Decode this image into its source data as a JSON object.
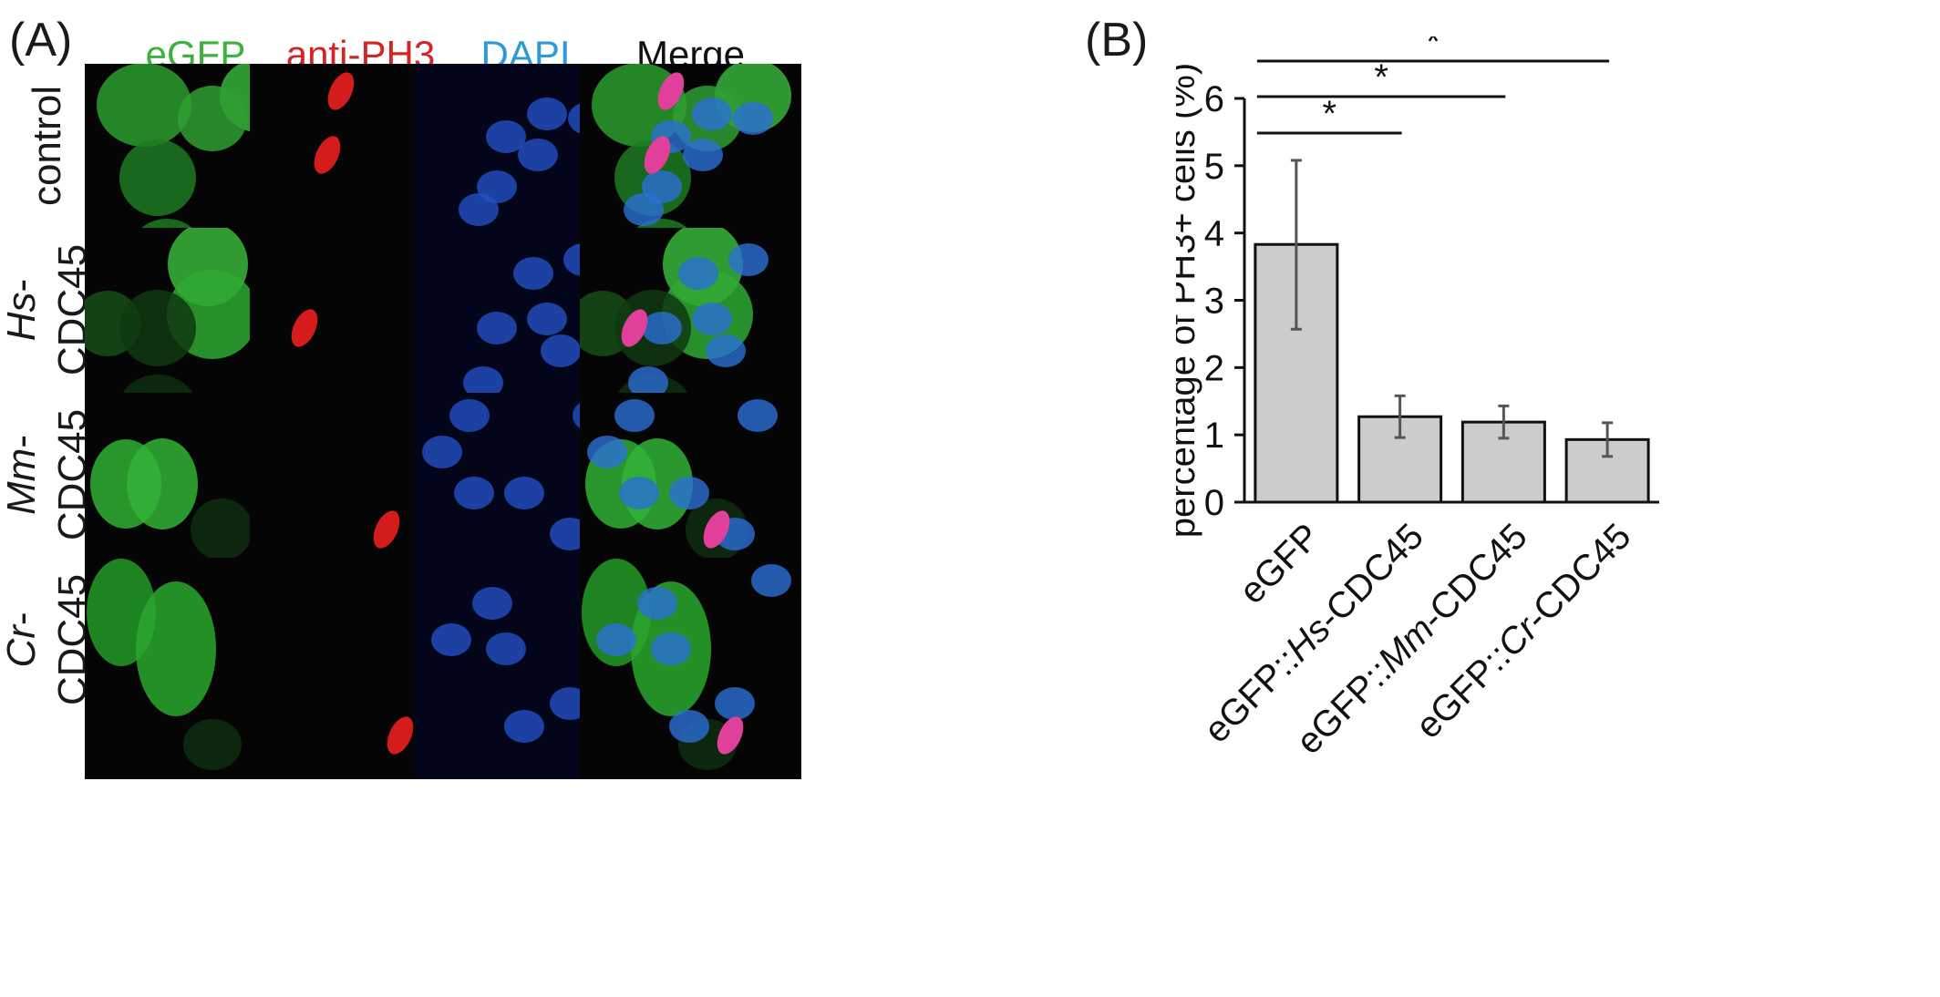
{
  "panel_a": {
    "letter": "(A)",
    "channels": [
      {
        "label": "eGFP",
        "color": "#3cb23c"
      },
      {
        "label": "anti-PH3",
        "color": "#d42424"
      },
      {
        "label": "DAPI",
        "color": "#2b9ad6"
      },
      {
        "label": "Merge",
        "color": "#111111"
      }
    ],
    "rows": [
      {
        "italic": "",
        "line1": "control",
        "line2": ""
      },
      {
        "italic": "Hs",
        "line1": "-",
        "line2": "CDC45"
      },
      {
        "italic": "Mm",
        "line1": "-",
        "line2": "CDC45"
      },
      {
        "italic": "Cr",
        "line1": "-",
        "line2": "CDC45"
      }
    ]
  },
  "panel_b": {
    "letter": "(B)"
  },
  "chart_data": {
    "type": "bar",
    "ylabel": "percentage of PH3+ cells (%)",
    "ylim": [
      0,
      6
    ],
    "yticks": [
      0,
      1,
      2,
      3,
      4,
      5,
      6
    ],
    "categories": [
      {
        "prefix": "eGFP",
        "italic": "",
        "suffix": ""
      },
      {
        "prefix": "eGFP::",
        "italic": "Hs",
        "suffix": "-CDC45"
      },
      {
        "prefix": "eGFP::",
        "italic": "Mm",
        "suffix": "-CDC45"
      },
      {
        "prefix": "eGFP::",
        "italic": "Cr",
        "suffix": "-CDC45"
      }
    ],
    "values": [
      3.83,
      1.27,
      1.19,
      0.93
    ],
    "error_low": [
      2.57,
      0.96,
      0.95,
      0.68
    ],
    "error_high": [
      5.08,
      1.58,
      1.43,
      1.18
    ],
    "bar_color": "#cccccc",
    "significance": [
      {
        "from": 0,
        "to": 1,
        "label": "*"
      },
      {
        "from": 0,
        "to": 2,
        "label": "*"
      },
      {
        "from": 0,
        "to": 3,
        "label": "*"
      }
    ]
  }
}
